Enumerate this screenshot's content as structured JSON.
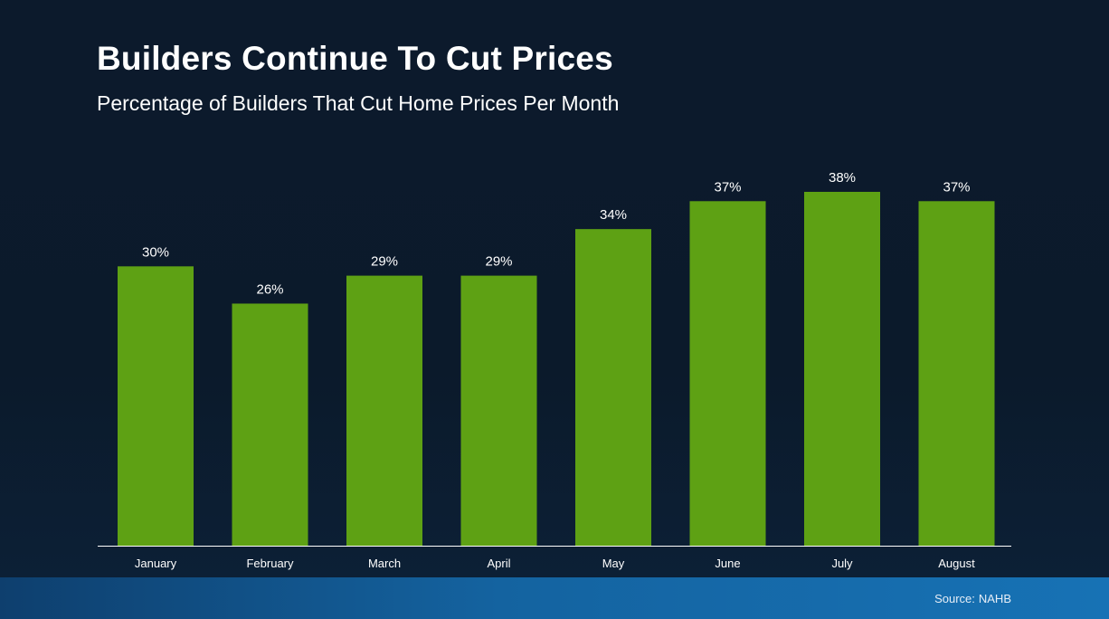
{
  "title": "Builders Continue To Cut Prices",
  "subtitle": "Percentage of Builders That Cut Home Prices Per Month",
  "source": {
    "label": "Source:",
    "value": "NAHB"
  },
  "colors": {
    "bar": "#5ea114",
    "background": "#0b1a2b",
    "axis": "#ffffff",
    "footer": "#1463a0"
  },
  "chart_data": {
    "type": "bar",
    "categories": [
      "January",
      "February",
      "March",
      "April",
      "May",
      "June",
      "July",
      "August"
    ],
    "values": [
      30,
      26,
      29,
      29,
      34,
      37,
      38,
      37
    ],
    "data_labels": [
      "30%",
      "26%",
      "29%",
      "29%",
      "34%",
      "37%",
      "38%",
      "37%"
    ],
    "xlabel": "",
    "ylabel": "",
    "ylim": [
      0,
      38
    ],
    "grid": false,
    "legend": "none"
  }
}
